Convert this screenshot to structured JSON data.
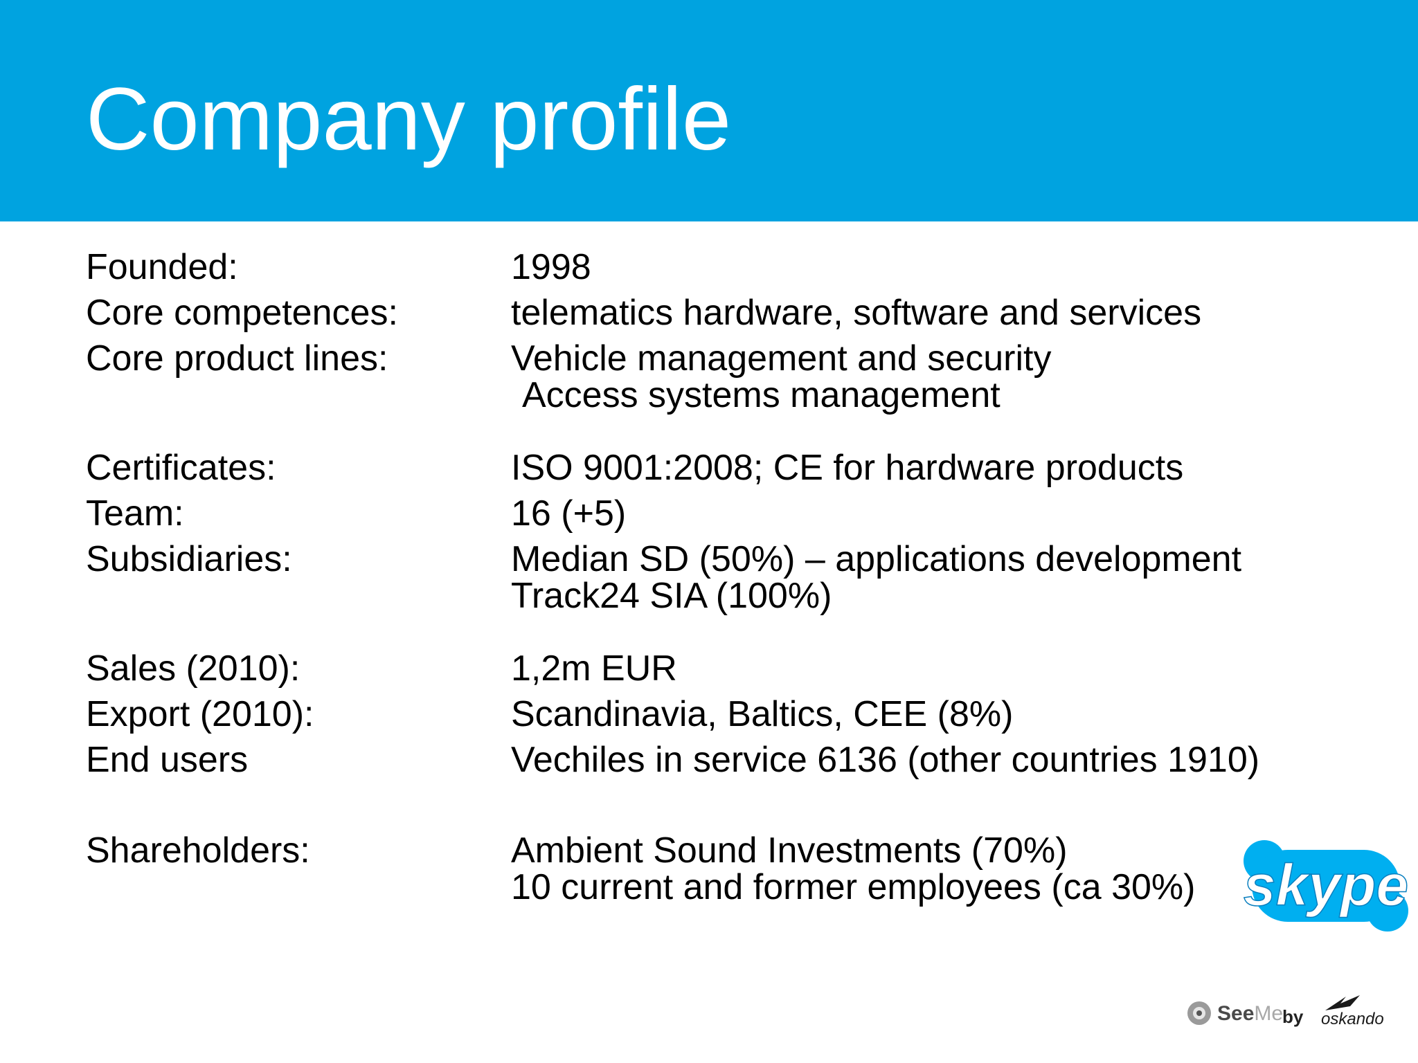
{
  "slide": {
    "title": "Company profile",
    "accent_color": "#00a3e0"
  },
  "profile": [
    {
      "label": "Founded:",
      "values": [
        "1998"
      ]
    },
    {
      "label": "Core competences:",
      "values": [
        "telematics hardware, software and services"
      ]
    },
    {
      "label": "Core product lines:",
      "values": [
        "Vehicle management and security",
        "Access systems management"
      ]
    },
    {
      "label": "Certificates:",
      "values": [
        "ISO 9001:2008; CE for hardware products"
      ]
    },
    {
      "label": "Team:",
      "values": [
        "16 (+5)"
      ]
    },
    {
      "label": "Subsidiaries:",
      "values": [
        "Median SD (50%) – applications development",
        "Track24 SIA (100%)"
      ]
    },
    {
      "label": "Sales (2010):",
      "values": [
        "1,2m EUR"
      ]
    },
    {
      "label": "Export (2010):",
      "values": [
        "Scandinavia, Baltics, CEE (8%)"
      ]
    },
    {
      "label": "End users",
      "values": [
        "Vechiles in service 6136 (other countries 1910)"
      ]
    },
    {
      "label": "Shareholders:",
      "values": [
        "Ambient Sound Investments  (70%)",
        "10 current and former employees (ca 30%)"
      ]
    }
  ],
  "logos": {
    "skype": {
      "text": "skype",
      "icon": "skype-logo",
      "color": "#00aff0"
    },
    "footer": {
      "see": "See",
      "me": "Me",
      "by": "by",
      "brand": "oskando",
      "icon": "seeme-logo"
    }
  }
}
